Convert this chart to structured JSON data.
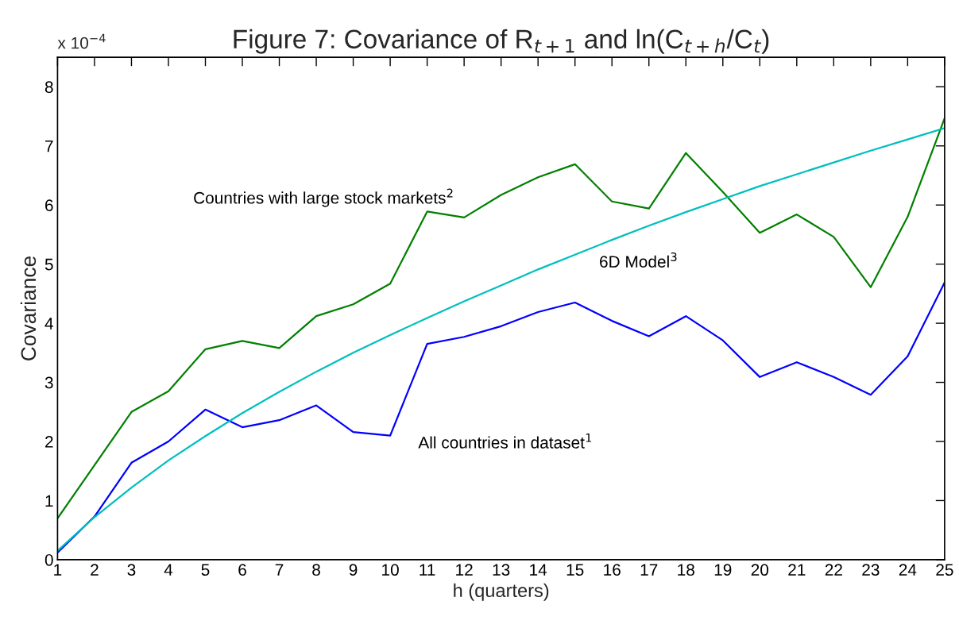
{
  "chart_data": {
    "type": "line",
    "title": "Figure 7: Covariance of R$_{t+1}$ and ln(C$_{t+h}$/C$_{t}$)",
    "xlabel": "h (quarters)",
    "ylabel": "Covariance",
    "x": [
      1,
      2,
      3,
      4,
      5,
      6,
      7,
      8,
      9,
      10,
      11,
      12,
      13,
      14,
      15,
      16,
      17,
      18,
      19,
      20,
      21,
      22,
      23,
      24,
      25
    ],
    "series": [
      {
        "name": "Countries with large stock markets$^{2}$",
        "color": "#008000",
        "values": [
          0.7,
          1.6,
          2.5,
          2.85,
          3.56,
          3.7,
          3.58,
          4.12,
          4.32,
          4.67,
          5.89,
          5.79,
          6.17,
          6.47,
          6.69,
          6.06,
          5.94,
          6.88,
          6.22,
          5.53,
          5.84,
          5.46,
          4.61,
          5.8,
          7.47
        ]
      },
      {
        "name": "All countries in dataset$^{1}$",
        "color": "#0000ff",
        "values": [
          0.12,
          0.73,
          1.64,
          2.0,
          2.54,
          2.24,
          2.36,
          2.61,
          2.16,
          2.1,
          3.65,
          3.77,
          3.95,
          4.19,
          4.35,
          4.04,
          3.78,
          4.12,
          3.71,
          3.09,
          3.34,
          3.09,
          2.79,
          3.44,
          4.69
        ]
      },
      {
        "name": "6D Model$^{3}$",
        "color": "#00bfbf",
        "values": [
          0.15,
          0.72,
          1.22,
          1.68,
          2.09,
          2.48,
          2.84,
          3.18,
          3.5,
          3.8,
          4.09,
          4.37,
          4.64,
          4.91,
          5.16,
          5.41,
          5.65,
          5.88,
          6.1,
          6.32,
          6.52,
          6.72,
          6.92,
          7.11,
          7.3
        ]
      }
    ],
    "annotations": [
      "x 10$^{−4}$"
    ],
    "xlim": [
      1,
      25
    ],
    "xticks": [
      1,
      2,
      3,
      4,
      5,
      6,
      7,
      8,
      9,
      10,
      11,
      12,
      13,
      14,
      15,
      16,
      17,
      18,
      19,
      20,
      21,
      22,
      23,
      24,
      25
    ],
    "ylim": [
      0,
      8.5
    ],
    "yticks": [
      0,
      1,
      2,
      3,
      4,
      5,
      6,
      7,
      8
    ],
    "grid": false,
    "line_style": "solid",
    "marker": "none"
  }
}
